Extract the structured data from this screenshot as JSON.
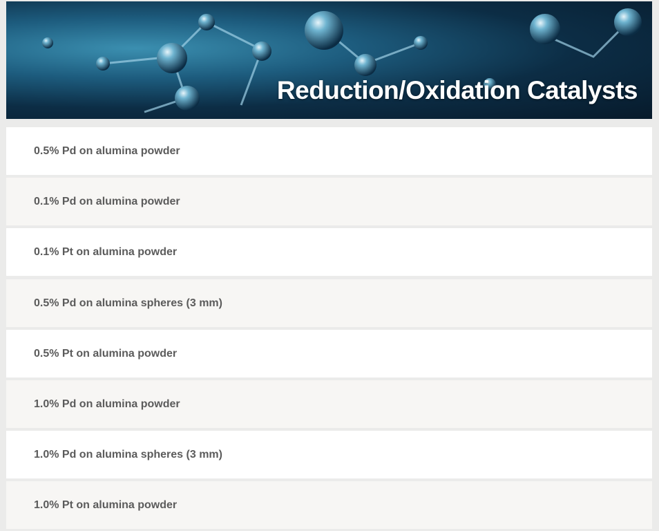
{
  "header": {
    "title": "Reduction/Oxidation Catalysts",
    "image": "molecule-banner"
  },
  "products": [
    "0.5% Pd on alumina powder",
    "0.1% Pd on alumina powder",
    "0.1% Pt on alumina powder",
    "0.5% Pd on alumina spheres (3 mm)",
    "0.5% Pt on alumina powder",
    "1.0% Pd on alumina powder",
    "1.0% Pd on alumina spheres (3 mm)",
    "1.0% Pt on alumina powder"
  ],
  "colors": {
    "background": "#ebebea",
    "row_alt": "#f7f6f4",
    "text": "#5b5b5b"
  }
}
